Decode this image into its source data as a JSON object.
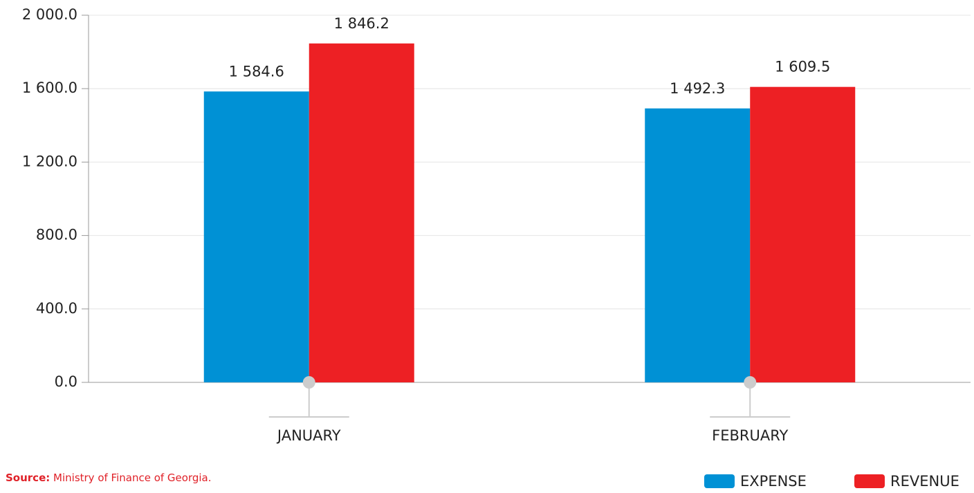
{
  "chart_data": {
    "type": "bar",
    "categories": [
      "JANUARY",
      "FEBRUARY"
    ],
    "series": [
      {
        "name": "EXPENSE",
        "color": "#0091d5",
        "values": [
          1584.6,
          1492.3
        ],
        "value_labels": [
          "1 584.6",
          "1 492.3"
        ]
      },
      {
        "name": "REVENUE",
        "color": "#ed2024",
        "values": [
          1846.2,
          1609.5
        ],
        "value_labels": [
          "1 846.2",
          "1 609.5"
        ]
      }
    ],
    "ylim": [
      0,
      2000
    ],
    "yticks": [
      {
        "value": 0,
        "label": "0.0"
      },
      {
        "value": 400,
        "label": "400.0"
      },
      {
        "value": 800,
        "label": "800.0"
      },
      {
        "value": 1200,
        "label": "1 200.0"
      },
      {
        "value": 1600,
        "label": "1 600.0"
      },
      {
        "value": 2000,
        "label": "2 000.0"
      }
    ],
    "grid": true,
    "legend": "bottom-right",
    "source_label": "Source:",
    "source": "Ministry of Finance of Georgia."
  }
}
